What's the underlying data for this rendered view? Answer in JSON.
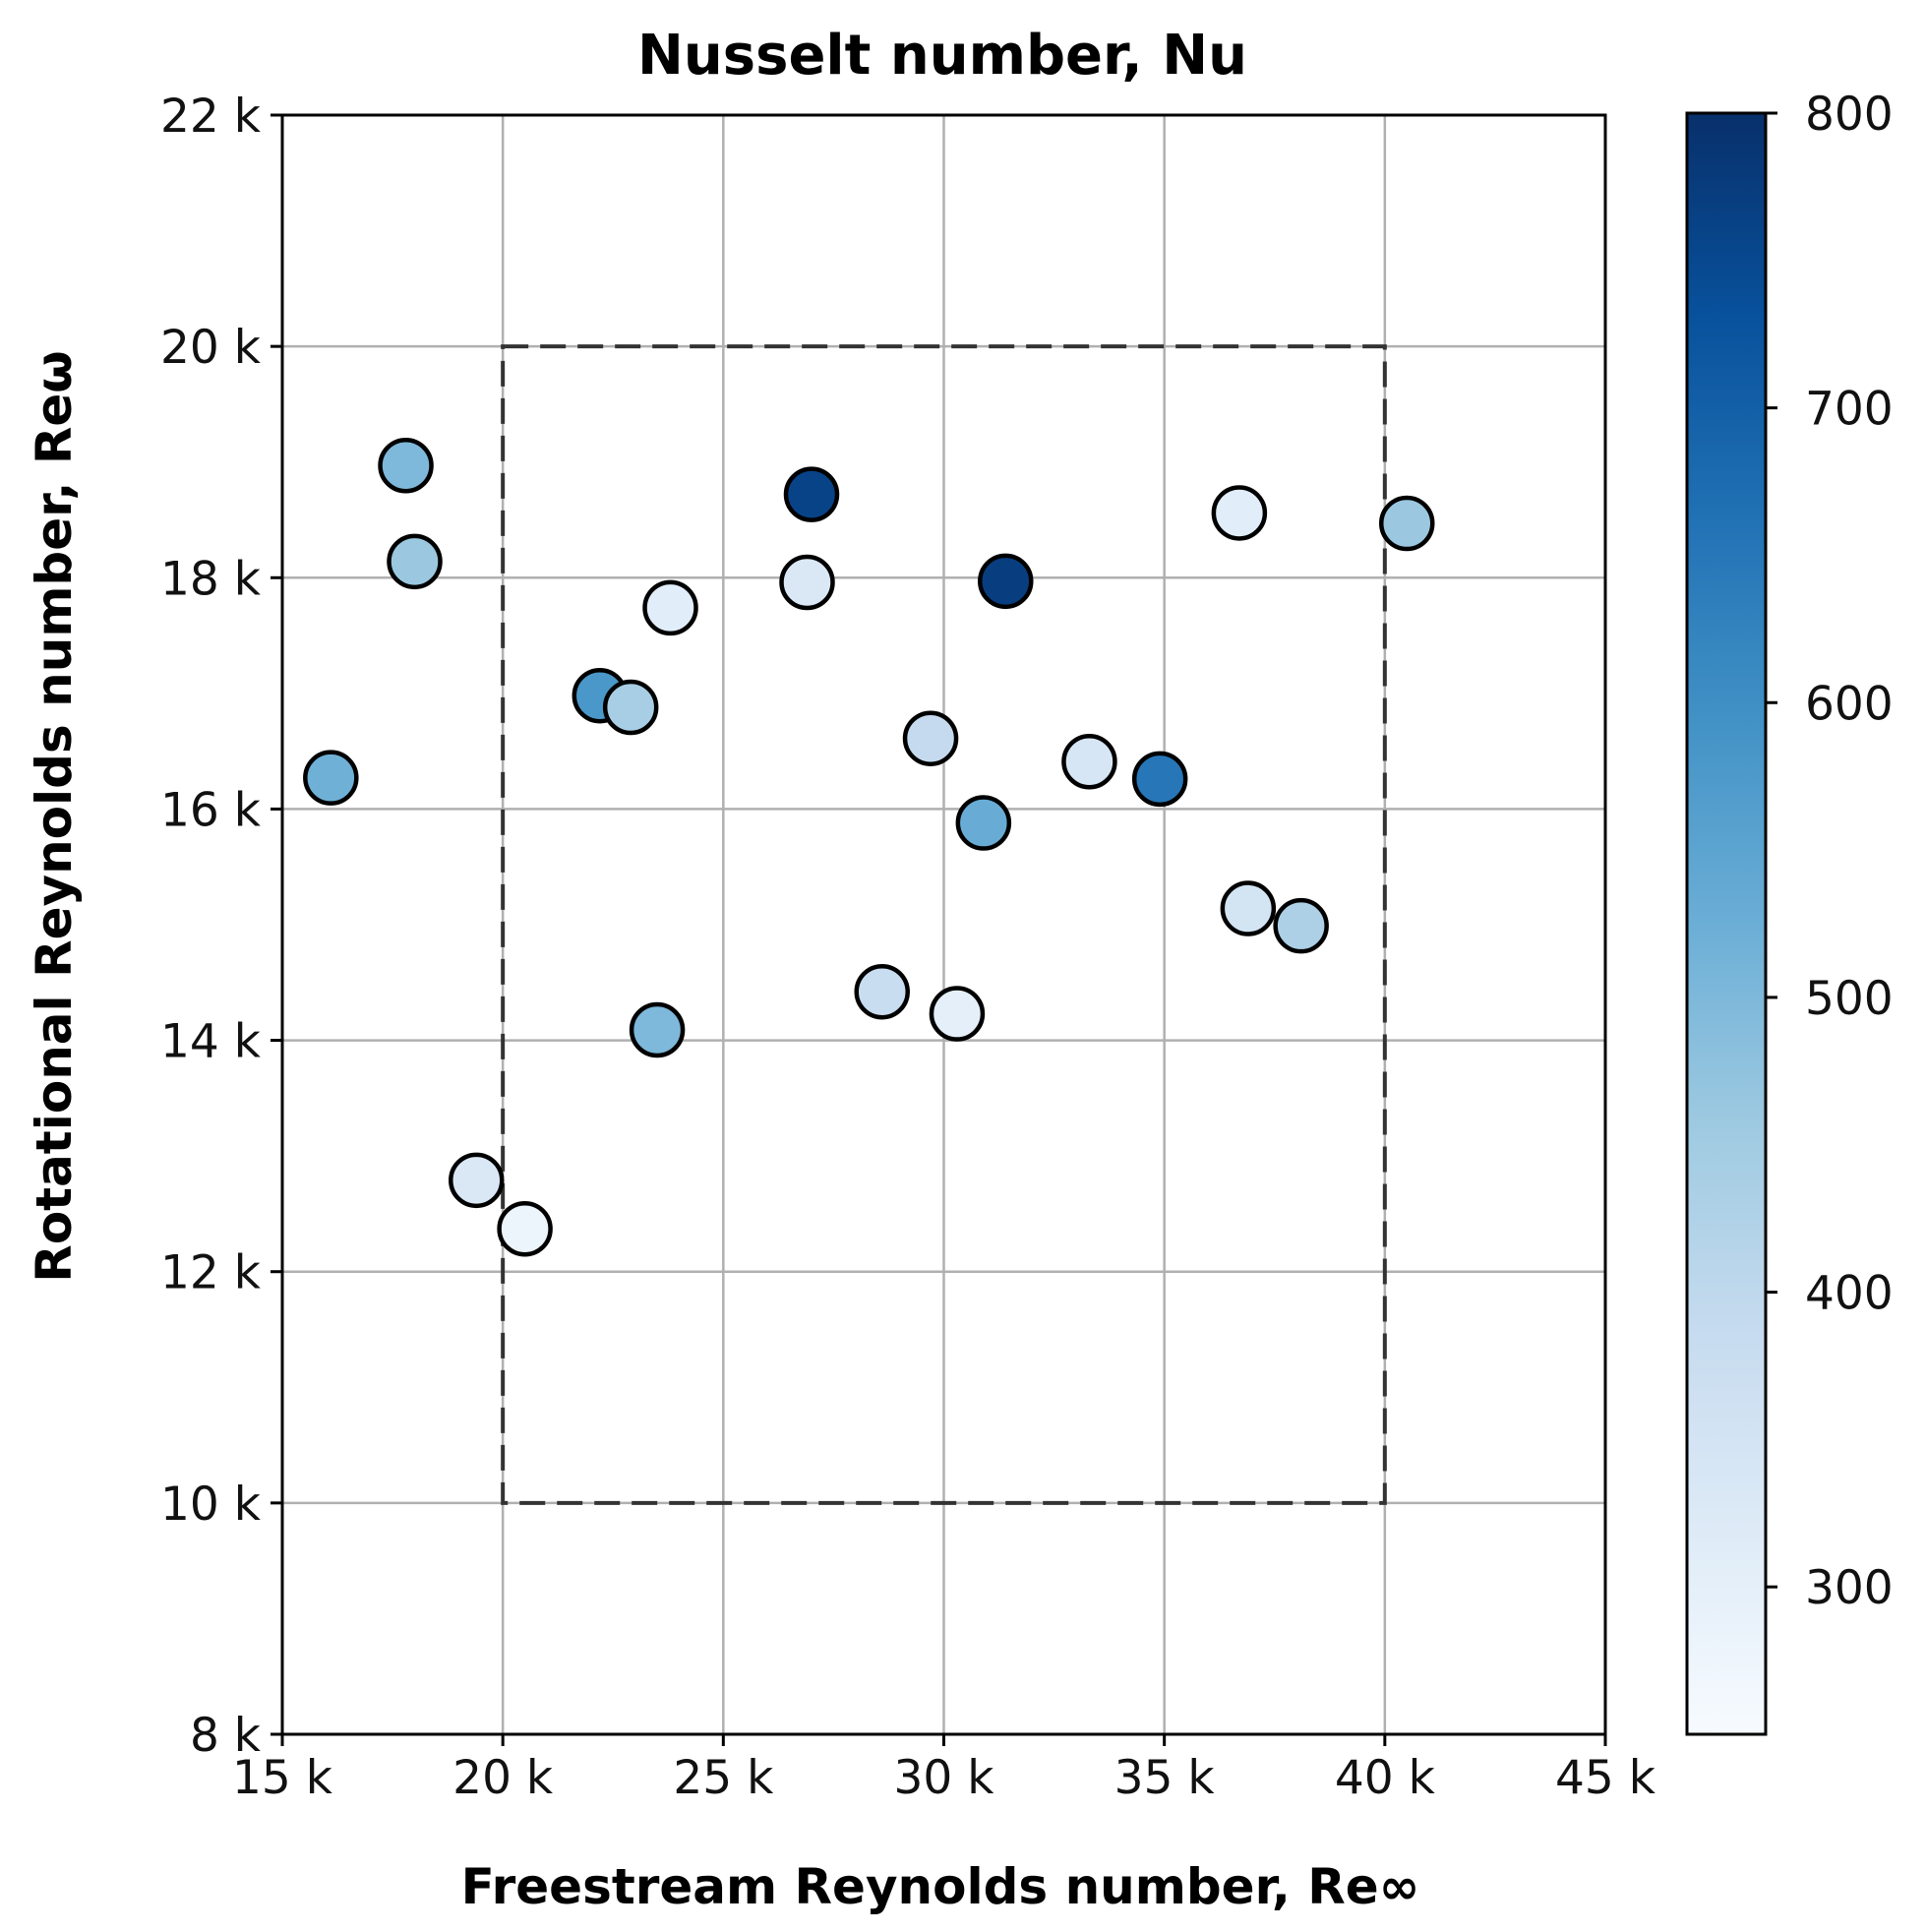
{
  "chart_data": {
    "type": "scatter",
    "title": "Nusselt number, Nu",
    "xlabel": "Freestream Reynolds number, Re∞",
    "ylabel": "Rotational Reynolds number, Reω",
    "xlim": [
      15000,
      45000
    ],
    "ylim": [
      8000,
      22000
    ],
    "x_ticks": [
      15000,
      20000,
      25000,
      30000,
      35000,
      40000,
      45000
    ],
    "x_tick_labels": [
      "15 k",
      "20 k",
      "25 k",
      "30 k",
      "35 k",
      "40 k",
      "45 k"
    ],
    "y_ticks": [
      8000,
      10000,
      12000,
      14000,
      16000,
      18000,
      20000,
      22000
    ],
    "y_tick_labels": [
      "8 k",
      "10 k",
      "12 k",
      "14 k",
      "16 k",
      "18 k",
      "20 k",
      "22 k"
    ],
    "grid": true,
    "colorbar": {
      "label": "",
      "range": [
        250,
        800
      ],
      "ticks": [
        300,
        400,
        500,
        600,
        700,
        800
      ],
      "tick_labels": [
        "300",
        "400",
        "500",
        "600",
        "700",
        "800"
      ],
      "colormap": "Blues",
      "placement": "right"
    },
    "region_box": {
      "x": [
        20000,
        40000
      ],
      "y": [
        10000,
        20000
      ],
      "style": "dashed"
    },
    "points": [
      {
        "x": 16100,
        "y": 16270,
        "nu": 520
      },
      {
        "x": 17800,
        "y": 18970,
        "nu": 500
      },
      {
        "x": 18000,
        "y": 18140,
        "nu": 460
      },
      {
        "x": 19400,
        "y": 12790,
        "nu": 330
      },
      {
        "x": 20500,
        "y": 12370,
        "nu": 280
      },
      {
        "x": 22200,
        "y": 16980,
        "nu": 580
      },
      {
        "x": 22900,
        "y": 16880,
        "nu": 440
      },
      {
        "x": 23500,
        "y": 14090,
        "nu": 500
      },
      {
        "x": 23800,
        "y": 17740,
        "nu": 310
      },
      {
        "x": 26900,
        "y": 17960,
        "nu": 330
      },
      {
        "x": 27000,
        "y": 18720,
        "nu": 760
      },
      {
        "x": 28600,
        "y": 14420,
        "nu": 380
      },
      {
        "x": 29700,
        "y": 16610,
        "nu": 390
      },
      {
        "x": 30300,
        "y": 14230,
        "nu": 300
      },
      {
        "x": 30900,
        "y": 15880,
        "nu": 530
      },
      {
        "x": 31400,
        "y": 17970,
        "nu": 770
      },
      {
        "x": 33300,
        "y": 16410,
        "nu": 340
      },
      {
        "x": 34900,
        "y": 16260,
        "nu": 650
      },
      {
        "x": 36700,
        "y": 18560,
        "nu": 310
      },
      {
        "x": 36900,
        "y": 15140,
        "nu": 350
      },
      {
        "x": 38100,
        "y": 14990,
        "nu": 430
      },
      {
        "x": 40500,
        "y": 18470,
        "nu": 460
      }
    ]
  }
}
